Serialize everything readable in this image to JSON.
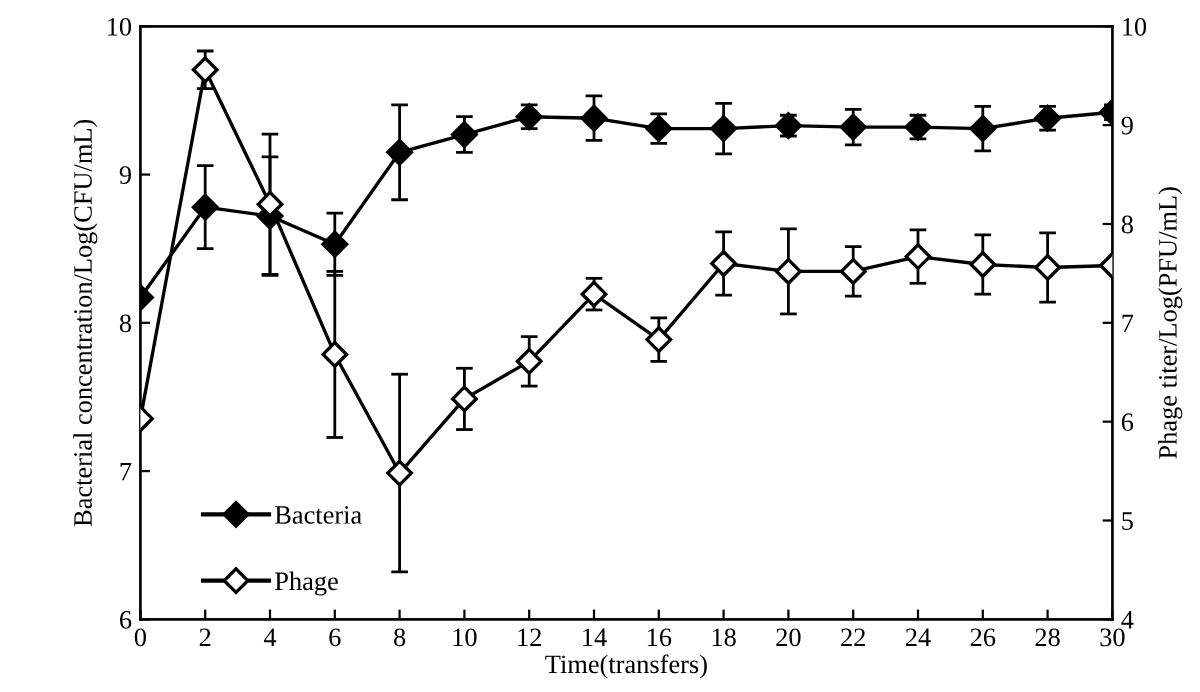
{
  "chart_data": {
    "type": "line",
    "xlabel": "Time(transfers)",
    "ylabel": "Bacterial concentration/Log(CFU/mL)",
    "y2label": "Phage titer/Log(PFU/mL)",
    "x": [
      0,
      2,
      4,
      6,
      8,
      10,
      12,
      14,
      16,
      18,
      20,
      22,
      24,
      26,
      28,
      30
    ],
    "series": [
      {
        "name": "Bacteria",
        "color": "#000000",
        "values": [
          8.17,
          8.78,
          8.72,
          8.53,
          9.15,
          9.27,
          9.39,
          9.38,
          9.31,
          9.31,
          9.33,
          9.32,
          9.32,
          9.31,
          9.38,
          9.42
        ],
        "errors": [
          null,
          0.28,
          0.4,
          0.21,
          0.32,
          0.12,
          0.08,
          0.15,
          0.1,
          0.17,
          0.07,
          0.12,
          0.08,
          0.15,
          0.08,
          0.05
        ]
      },
      {
        "name": "Phage",
        "color": "#000000",
        "axis": "y2",
        "values": [
          6.03,
          9.56,
          8.2,
          6.68,
          5.48,
          6.23,
          6.61,
          7.29,
          6.83,
          7.6,
          7.52,
          7.52,
          7.67,
          7.59,
          7.56,
          7.58
        ],
        "errors": [
          null,
          0.19,
          0.71,
          0.84,
          1.0,
          0.31,
          0.25,
          0.16,
          0.22,
          0.32,
          0.43,
          0.25,
          0.27,
          0.3,
          0.35,
          null
        ]
      }
    ],
    "xlim": [
      0,
      30
    ],
    "xticks": [
      0,
      2,
      4,
      6,
      8,
      10,
      12,
      14,
      16,
      18,
      20,
      22,
      24,
      26,
      28,
      30
    ],
    "ylim": [
      6,
      10
    ],
    "yticks": [
      6,
      7,
      8,
      9,
      10
    ],
    "y2lim": [
      4,
      10
    ],
    "y2ticks": [
      4,
      5,
      6,
      7,
      8,
      9,
      10
    ],
    "marker": "diamond",
    "line_style": "solid",
    "grid": false,
    "legend": "bottom left"
  }
}
